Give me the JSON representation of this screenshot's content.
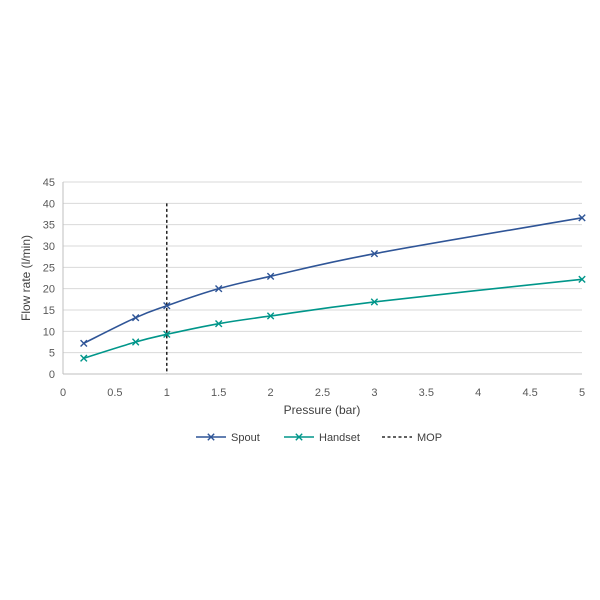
{
  "chart_data": {
    "type": "line",
    "xlabel": "Pressure (bar)",
    "ylabel": "Flow rate (l/min)",
    "xlim": [
      0,
      5
    ],
    "ylim": [
      0,
      45
    ],
    "x_ticks": [
      "0",
      "0.5",
      "1",
      "1.5",
      "2",
      "2.5",
      "3",
      "3.5",
      "4",
      "4.5",
      "5"
    ],
    "y_ticks": [
      "0",
      "5",
      "10",
      "15",
      "20",
      "25",
      "30",
      "35",
      "40",
      "45"
    ],
    "grid": true,
    "legend_position": "bottom",
    "series": [
      {
        "name": "Spout",
        "color": "#2F5597",
        "marker": "x",
        "x": [
          0.2,
          0.7,
          1,
          1.5,
          2,
          3,
          5
        ],
        "values": [
          7.2,
          13.2,
          16,
          20,
          22.9,
          28.2,
          36.6
        ]
      },
      {
        "name": "Handset",
        "color": "#00968A",
        "marker": "x",
        "x": [
          0.2,
          0.7,
          1,
          1.5,
          2,
          3,
          5
        ],
        "values": [
          3.7,
          7.5,
          9.3,
          11.8,
          13.6,
          16.9,
          22.2
        ]
      }
    ],
    "reference_lines": [
      {
        "name": "MOP",
        "orientation": "vertical",
        "x": 1,
        "style": "dashed",
        "color": "#000000"
      }
    ]
  }
}
